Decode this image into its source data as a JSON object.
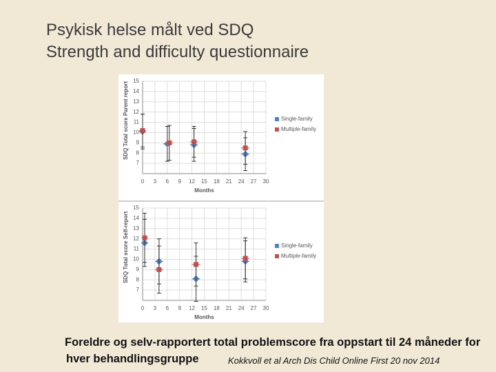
{
  "slide": {
    "title_lines": [
      "Psykisk helse målt ved SDQ",
      "Strength and difficulty questionnaire"
    ],
    "caption_lines": [
      "Foreldre og selv-rapportert total problemscore fra oppstart til 24 måneder for",
      "hver behandlingsgruppe"
    ],
    "citation": "Kokkvoll et al Arch Dis Child Online First 20 nov 2014"
  },
  "chart_data": [
    {
      "type": "scatter",
      "y_label": "SDQ Total score Parent report",
      "x_label": "Months",
      "xlim": [
        0,
        30
      ],
      "xticks": [
        0,
        3,
        6,
        9,
        12,
        15,
        18,
        21,
        24,
        27,
        30
      ],
      "ylim": [
        6,
        15
      ],
      "yticks": [
        7,
        8,
        9,
        10,
        11,
        12,
        13,
        14,
        15
      ],
      "grid": true,
      "legend": "right",
      "series": [
        {
          "name": "Single-family",
          "color": "#4f81bd",
          "x": [
            0,
            6,
            12.5,
            25
          ],
          "values": [
            10.1,
            8.9,
            8.8,
            7.9
          ],
          "yerr": [
            1.7,
            1.7,
            1.6,
            1.6
          ],
          "xerr": [
            0.8,
            1,
            1,
            1
          ]
        },
        {
          "name": "Multiple-family",
          "color": "#c0504d",
          "x": [
            0,
            6.5,
            12.5,
            25
          ],
          "values": [
            10.2,
            9.0,
            9.1,
            8.5
          ],
          "yerr": [
            1.6,
            1.7,
            1.5,
            1.6
          ],
          "xerr": [
            0.8,
            1,
            1,
            1
          ]
        }
      ]
    },
    {
      "type": "scatter",
      "y_label": "SDQ Total score Self-report",
      "x_label": "Months",
      "xlim": [
        0,
        30
      ],
      "xticks": [
        0,
        3,
        6,
        9,
        12,
        15,
        18,
        21,
        24,
        27,
        30
      ],
      "ylim": [
        6,
        15
      ],
      "yticks": [
        7,
        8,
        9,
        10,
        11,
        12,
        13,
        14,
        15
      ],
      "grid": true,
      "legend": "right",
      "series": [
        {
          "name": "Single-family",
          "color": "#4f81bd",
          "x": [
            0.5,
            4,
            13,
            25
          ],
          "values": [
            11.6,
            9.8,
            8.1,
            9.8
          ],
          "yerr": [
            2.3,
            2.2,
            2.2,
            2.0
          ],
          "xerr": [
            0.8,
            1,
            1,
            1
          ]
        },
        {
          "name": "Multiple-family",
          "color": "#c0504d",
          "x": [
            0.5,
            4,
            13,
            25
          ],
          "values": [
            12.1,
            9.0,
            9.5,
            10.1
          ],
          "yerr": [
            2.4,
            2.3,
            2.1,
            2.0
          ],
          "xerr": [
            0.8,
            1,
            1,
            1
          ]
        }
      ]
    }
  ]
}
